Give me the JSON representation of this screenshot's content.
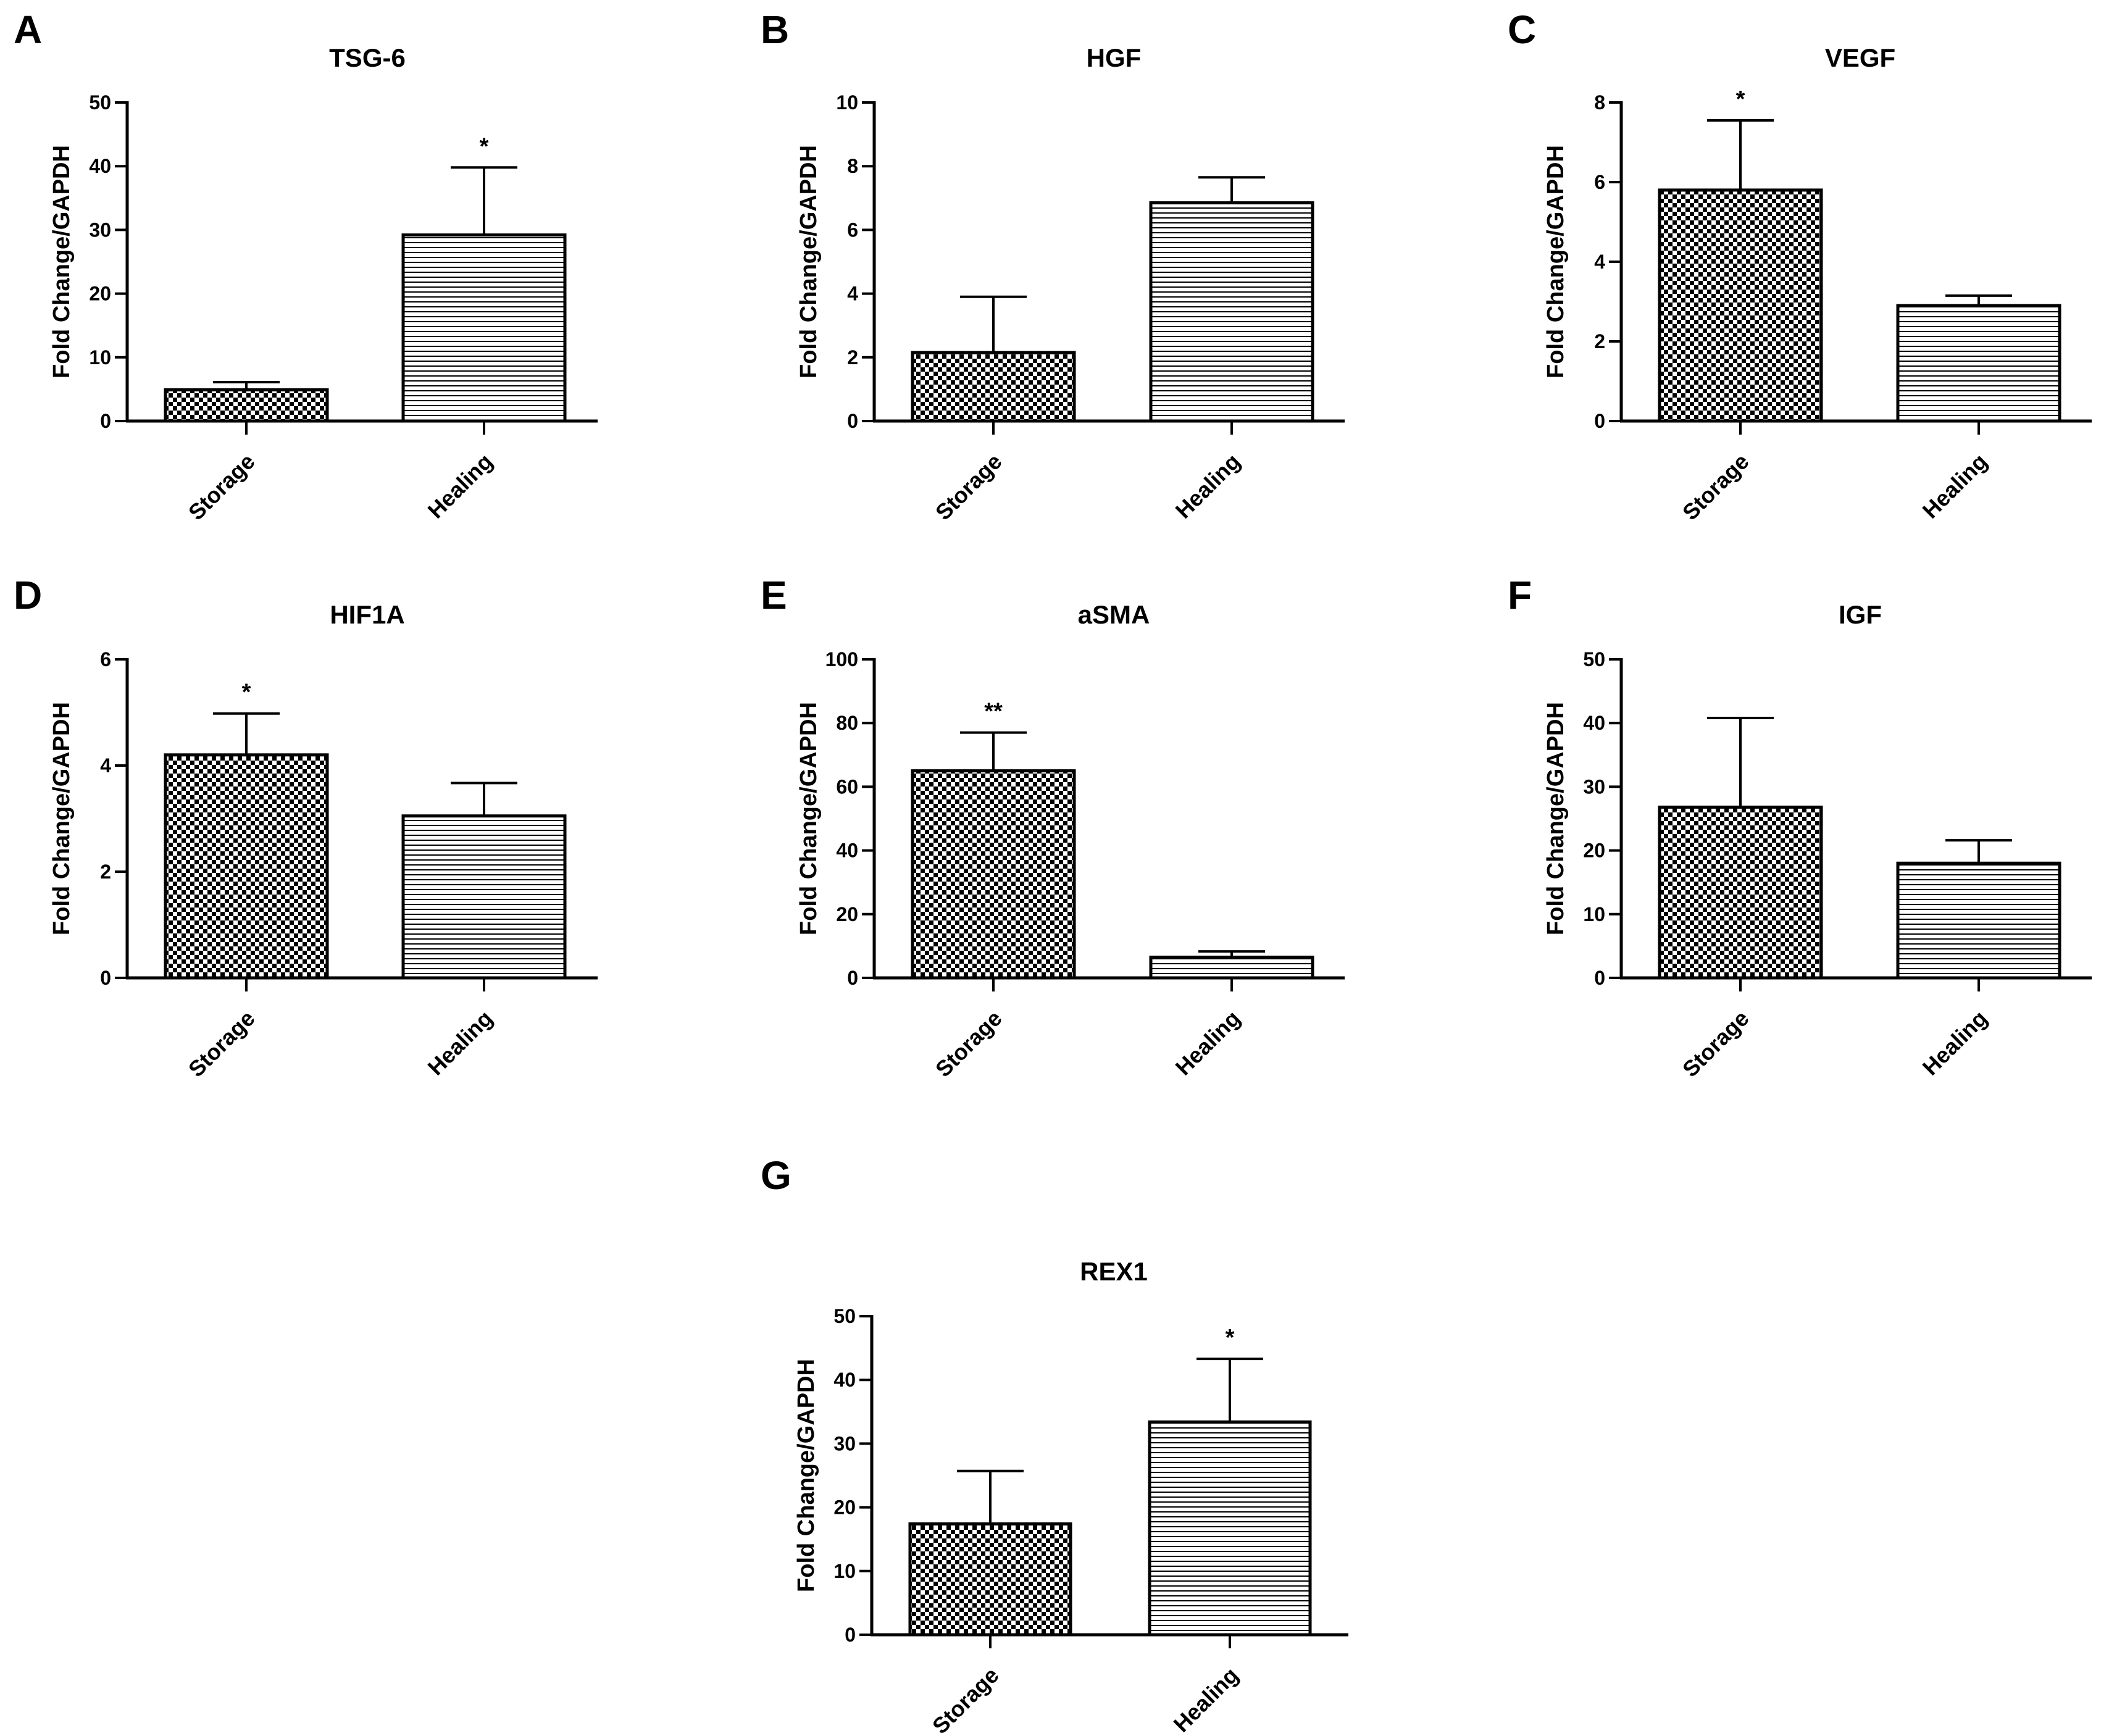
{
  "colors": {
    "ink": "#000000",
    "background": "#ffffff"
  },
  "chart_data": [
    {
      "panel": "A",
      "type": "bar",
      "title": "TSG-6",
      "ylabel": "Fold Change/GAPDH",
      "categories": [
        "Storage",
        "Healing"
      ],
      "patterns": [
        "checker",
        "hstripe"
      ],
      "values": [
        4.9,
        29.2
      ],
      "errors": [
        1.2,
        10.6
      ],
      "significance": [
        "",
        "*"
      ],
      "ylim": [
        0,
        50
      ],
      "yticks": [
        0,
        10,
        20,
        30,
        40,
        50
      ],
      "grid": false,
      "legend": "none"
    },
    {
      "panel": "B",
      "type": "bar",
      "title": "HGF",
      "ylabel": "Fold Change/GAPDH",
      "categories": [
        "Storage",
        "Healing"
      ],
      "patterns": [
        "checker",
        "hstripe"
      ],
      "values": [
        2.15,
        6.85
      ],
      "errors": [
        1.75,
        0.8
      ],
      "significance": [
        "",
        ""
      ],
      "ylim": [
        0,
        10
      ],
      "yticks": [
        0,
        2,
        4,
        6,
        8,
        10
      ],
      "grid": false,
      "legend": "none"
    },
    {
      "panel": "C",
      "type": "bar",
      "title": "VEGF",
      "ylabel": "Fold Change/GAPDH",
      "categories": [
        "Storage",
        "Healing"
      ],
      "patterns": [
        "checker",
        "hstripe"
      ],
      "values": [
        5.8,
        2.9
      ],
      "errors": [
        1.75,
        0.25
      ],
      "significance": [
        "*",
        ""
      ],
      "ylim": [
        0,
        8
      ],
      "yticks": [
        0,
        2,
        4,
        6,
        8
      ],
      "grid": false,
      "legend": "none"
    },
    {
      "panel": "D",
      "type": "bar",
      "title": "HIF1A",
      "ylabel": "Fold Change/GAPDH",
      "categories": [
        "Storage",
        "Healing"
      ],
      "patterns": [
        "checker",
        "hstripe"
      ],
      "values": [
        4.2,
        3.05
      ],
      "errors": [
        0.78,
        0.62
      ],
      "significance": [
        "*",
        ""
      ],
      "ylim": [
        0,
        6
      ],
      "yticks": [
        0,
        2,
        4,
        6
      ],
      "grid": false,
      "legend": "none"
    },
    {
      "panel": "E",
      "type": "bar",
      "title": "aSMA",
      "ylabel": "Fold Change/GAPDH",
      "categories": [
        "Storage",
        "Healing"
      ],
      "patterns": [
        "checker",
        "hstripe"
      ],
      "values": [
        65,
        6.5
      ],
      "errors": [
        12,
        1.8
      ],
      "significance": [
        "**",
        ""
      ],
      "ylim": [
        0,
        100
      ],
      "yticks": [
        0,
        20,
        40,
        60,
        80,
        100
      ],
      "grid": false,
      "legend": "none"
    },
    {
      "panel": "F",
      "type": "bar",
      "title": "IGF",
      "ylabel": "Fold Change/GAPDH",
      "categories": [
        "Storage",
        "Healing"
      ],
      "patterns": [
        "checker",
        "hstripe"
      ],
      "values": [
        26.8,
        18
      ],
      "errors": [
        14,
        3.6
      ],
      "significance": [
        "",
        ""
      ],
      "ylim": [
        0,
        50
      ],
      "yticks": [
        0,
        10,
        20,
        30,
        40,
        50
      ],
      "grid": false,
      "legend": "none"
    },
    {
      "panel": "G",
      "type": "bar",
      "title": "REX1",
      "ylabel": "Fold Change/GAPDH",
      "categories": [
        "Storage",
        "Healing"
      ],
      "patterns": [
        "checker",
        "hstripe"
      ],
      "values": [
        17.4,
        33.4
      ],
      "errors": [
        8.3,
        9.9
      ],
      "significance": [
        "",
        "*"
      ],
      "ylim": [
        0,
        50
      ],
      "yticks": [
        0,
        10,
        20,
        30,
        40,
        50
      ],
      "grid": false,
      "legend": "none"
    }
  ]
}
